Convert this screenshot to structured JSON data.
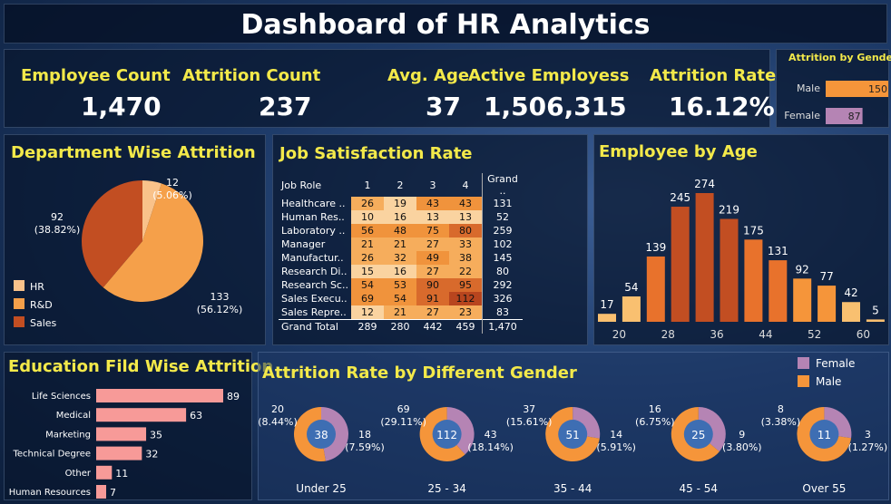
{
  "title": "Dashboard of HR Analytics",
  "kpis": [
    {
      "label": "Employee Count",
      "value": "1,470"
    },
    {
      "label": "Attrition Count",
      "value": "237"
    },
    {
      "label": "Avg. Age",
      "value": "37"
    },
    {
      "label": "Active Employess",
      "value": "1,506,315"
    },
    {
      "label": "Attrition Rate",
      "value": "16.12%"
    }
  ],
  "colors": {
    "orange": "#f5953a",
    "dark_orange": "#c24e22",
    "light_orange": "#f9c28a",
    "mauve": "#b584b4",
    "salmon": "#f79a98",
    "blue_center": "#3e6eb3",
    "title_yellow": "#f3e94a"
  },
  "chart_data": [
    {
      "type": "bar",
      "title": "Attrition by Gender",
      "categories": [
        "Male",
        "Female"
      ],
      "values": [
        150,
        87
      ],
      "colors": [
        "#f5953a",
        "#b584b4"
      ]
    },
    {
      "type": "pie",
      "title": "Department Wise Attrition",
      "slices": [
        {
          "label": "HR",
          "value": 12,
          "pct": "(5.06%)",
          "color": "#f9c28a"
        },
        {
          "label": "R&D",
          "value": 133,
          "pct": "(56.12%)",
          "color": "#f5a04a"
        },
        {
          "label": "Sales",
          "value": 92,
          "pct": "(38.82%)",
          "color": "#c24e22"
        }
      ]
    },
    {
      "type": "table",
      "title": "Job Satisfaction Rate",
      "columns": [
        "Job Role",
        "1",
        "2",
        "3",
        "4",
        "Grand .."
      ],
      "rows": [
        {
          "role": "Healthcare ..",
          "values": [
            26,
            19,
            43,
            43
          ],
          "total": 131
        },
        {
          "role": "Human Res..",
          "values": [
            10,
            16,
            13,
            13
          ],
          "total": 52
        },
        {
          "role": "Laboratory ..",
          "values": [
            56,
            48,
            75,
            80
          ],
          "total": 259
        },
        {
          "role": "Manager",
          "values": [
            21,
            21,
            27,
            33
          ],
          "total": 102
        },
        {
          "role": "Manufactur..",
          "values": [
            26,
            32,
            49,
            38
          ],
          "total": 145
        },
        {
          "role": "Research Di..",
          "values": [
            15,
            16,
            27,
            22
          ],
          "total": 80
        },
        {
          "role": "Research Sc..",
          "values": [
            54,
            53,
            90,
            95
          ],
          "total": 292
        },
        {
          "role": "Sales Execu..",
          "values": [
            69,
            54,
            91,
            112
          ],
          "total": 326
        },
        {
          "role": "Sales Repre..",
          "values": [
            12,
            21,
            27,
            23
          ],
          "total": 83
        }
      ],
      "grand_total": {
        "label": "Grand Total",
        "values": [
          "289",
          "280",
          "442",
          "459"
        ],
        "total": "1,470"
      }
    },
    {
      "type": "bar",
      "title": "Employee by Age",
      "values": [
        17,
        54,
        139,
        245,
        274,
        219,
        175,
        131,
        92,
        77,
        42,
        5
      ],
      "tick_labels": [
        "20",
        "28",
        "36",
        "44",
        "52",
        "60"
      ],
      "ylim": [
        0,
        274
      ]
    },
    {
      "type": "bar",
      "title": "Education Fild Wise Attrition",
      "categories": [
        "Life Sciences",
        "Medical",
        "Marketing",
        "Technical Degree",
        "Other",
        "Human Resources"
      ],
      "values": [
        89,
        63,
        35,
        32,
        11,
        7
      ],
      "color": "#f79a98"
    },
    {
      "type": "pie",
      "title": "Attrition Rate by Different Gender",
      "legend": [
        "Female",
        "Male"
      ],
      "groups": [
        {
          "label": "Under 25",
          "total": "38",
          "female": 18,
          "female_label": "18",
          "female_pct": "(7.59%)",
          "male": 20,
          "male_label": "20",
          "male_pct": "(8.44%)"
        },
        {
          "label": "25 - 34",
          "total": "112",
          "female": 43,
          "female_label": "43",
          "female_pct": "(18.14%)",
          "male": 69,
          "male_label": "69",
          "male_pct": "(29.11%)"
        },
        {
          "label": "35 - 44",
          "total": "51",
          "female": 14,
          "female_label": "14",
          "female_pct": "(5.91%)",
          "male": 37,
          "male_label": "37",
          "male_pct": "(15.61%)"
        },
        {
          "label": "45 - 54",
          "total": "25",
          "female": 9,
          "female_label": "9",
          "female_pct": "(3.80%)",
          "male": 16,
          "male_label": "16",
          "male_pct": "(6.75%)"
        },
        {
          "label": "Over 55",
          "total": "11",
          "female": 3,
          "female_label": "3",
          "female_pct": "(1.27%)",
          "male": 8,
          "male_label": "8",
          "male_pct": "(3.38%)"
        }
      ]
    }
  ]
}
